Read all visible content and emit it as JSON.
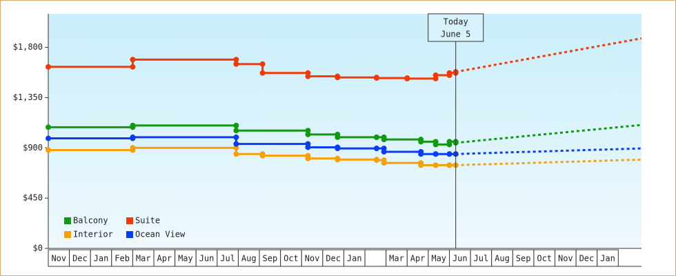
{
  "chart_data": {
    "type": "step-line",
    "categories": [
      "Nov",
      "Dec",
      "Jan",
      "Feb",
      "Mar",
      "Apr",
      "May",
      "Jun",
      "Jul",
      "Aug",
      "Sep",
      "Oct",
      "Nov",
      "Dec",
      "Jan",
      null,
      "Mar",
      "Apr",
      "May",
      "Jun",
      "Jul",
      "Aug",
      "Sep",
      "Oct",
      "Nov",
      "Dec",
      "Jan"
    ],
    "xlim": [
      0,
      28.1
    ],
    "ylim": [
      0,
      2100
    ],
    "yticks": [
      {
        "value": 0,
        "label": "$0"
      },
      {
        "value": 450,
        "label": "$450"
      },
      {
        "value": 900,
        "label": "$900"
      },
      {
        "value": 1350,
        "label": "$1,350"
      },
      {
        "value": 1800,
        "label": "$1,800"
      }
    ],
    "legend": "lower left",
    "annotation": {
      "lines": [
        "Today",
        "June 5"
      ],
      "x": 19.3
    },
    "series": [
      {
        "name": "Balcony",
        "color": "#119911",
        "x": [
          0,
          4.0,
          8.9,
          12.3,
          13.7,
          15.55,
          15.9,
          17.65,
          18.35,
          19.0,
          19.3
        ],
        "values": [
          1085,
          1100,
          1055,
          1020,
          995,
          995,
          975,
          955,
          930,
          955,
          945
        ],
        "forecast": {
          "x": [
            19.3,
            28.1
          ],
          "values": [
            945,
            1105
          ]
        }
      },
      {
        "name": "Suite",
        "color": "#f03a0a",
        "x": [
          0,
          4.0,
          8.9,
          10.15,
          12.3,
          13.7,
          15.55,
          17.0,
          18.35,
          19.0,
          19.3
        ],
        "values": [
          1625,
          1690,
          1650,
          1570,
          1540,
          1530,
          1525,
          1520,
          1550,
          1570,
          1580
        ],
        "forecast": {
          "x": [
            19.3,
            28.1
          ],
          "values": [
            1580,
            1880
          ]
        }
      },
      {
        "name": "Interior",
        "color": "#f5a00a",
        "x": [
          0,
          4.0,
          8.9,
          10.15,
          12.3,
          13.7,
          15.55,
          15.9,
          17.65,
          18.35,
          19.0,
          19.3
        ],
        "values": [
          880,
          900,
          845,
          830,
          805,
          795,
          790,
          765,
          745,
          745,
          745,
          745
        ],
        "forecast": {
          "x": [
            19.3,
            28.1
          ],
          "values": [
            745,
            795
          ]
        }
      },
      {
        "name": "Ocean View",
        "color": "#0a3cf0",
        "x": [
          0,
          4.0,
          8.9,
          12.3,
          13.7,
          15.55,
          15.9,
          17.65,
          18.35,
          19.0,
          19.3
        ],
        "values": [
          985,
          995,
          935,
          905,
          895,
          895,
          865,
          845,
          845,
          845,
          845
        ],
        "forecast": {
          "x": [
            19.3,
            28.1
          ],
          "values": [
            845,
            895
          ]
        }
      }
    ]
  }
}
